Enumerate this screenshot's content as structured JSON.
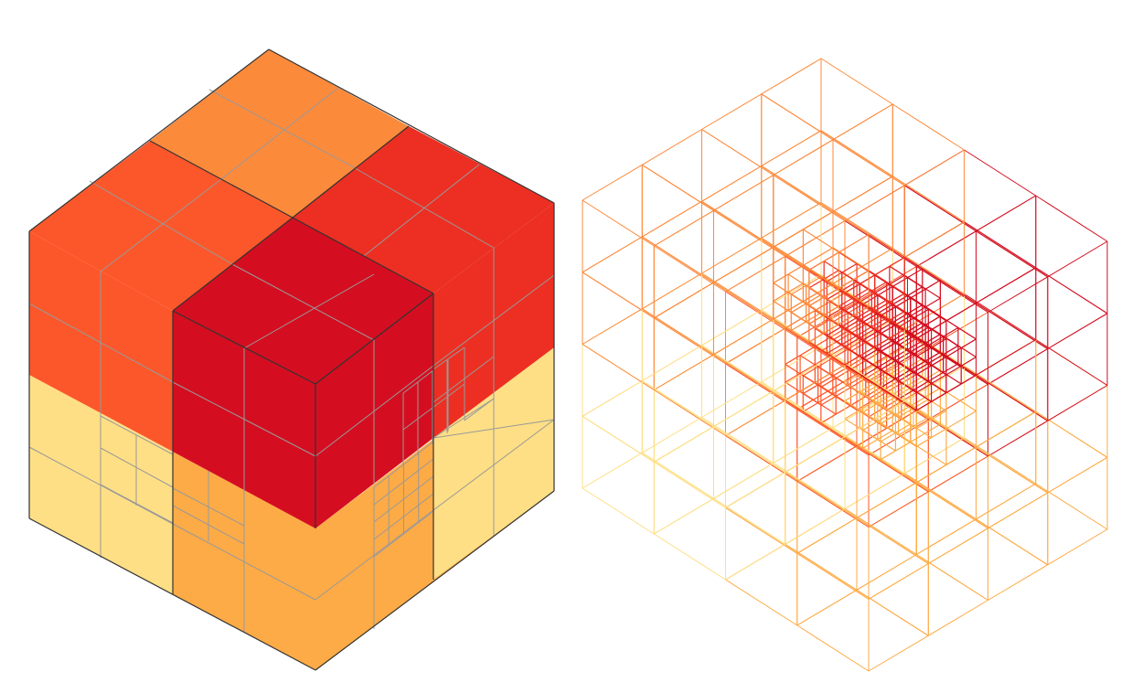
{
  "figure": {
    "description_text": "",
    "views": [
      {
        "id": "solid",
        "style": "filled"
      },
      {
        "id": "wireframe",
        "style": "outline"
      }
    ]
  },
  "colors": {
    "level_0": "#fedf85",
    "level_1": "#fdab46",
    "level_2": "#fc8a3b",
    "level_3": "#fc572a",
    "level_4": "#ec2f22",
    "level_5": "#d40e20",
    "grid_line": "#999999",
    "edge_line": "#333333"
  }
}
